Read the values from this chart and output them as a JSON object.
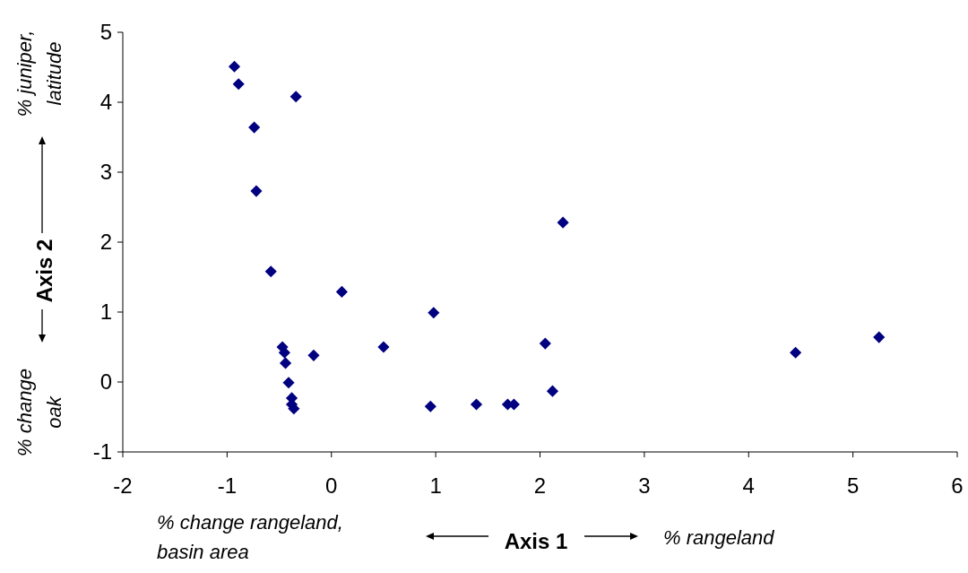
{
  "chart_data": {
    "type": "scatter",
    "xlabel": "Axis 1",
    "ylabel": "Axis 2",
    "annotations": [
      "% change rangeland, basin area",
      "% rangeland",
      "% juniper, latitude",
      "% change oak"
    ],
    "x": [
      -0.93,
      -0.89,
      -0.34,
      -0.74,
      -0.72,
      -0.58,
      0.1,
      0.98,
      2.22,
      0.5,
      -0.17,
      -0.47,
      -0.45,
      -0.44,
      -0.41,
      -0.38,
      -0.38,
      -0.36,
      0.95,
      1.39,
      1.69,
      1.75,
      2.12,
      2.05,
      4.45,
      5.25
    ],
    "values": [
      4.51,
      4.26,
      4.08,
      3.64,
      2.73,
      1.58,
      1.29,
      0.99,
      2.28,
      0.5,
      0.38,
      0.5,
      0.42,
      0.27,
      -0.01,
      -0.23,
      -0.32,
      -0.38,
      -0.35,
      -0.32,
      -0.32,
      -0.32,
      -0.13,
      0.55,
      0.42,
      0.64
    ],
    "color": "#000080",
    "marker": "diamond",
    "xlim": [
      -2,
      6
    ],
    "xticks": [
      -2,
      -1,
      0,
      1,
      2,
      3,
      4,
      5,
      6
    ],
    "ylim": [
      -1,
      5
    ],
    "yticks": [
      -1,
      0,
      1,
      2,
      3,
      4,
      5
    ],
    "grid": false
  }
}
